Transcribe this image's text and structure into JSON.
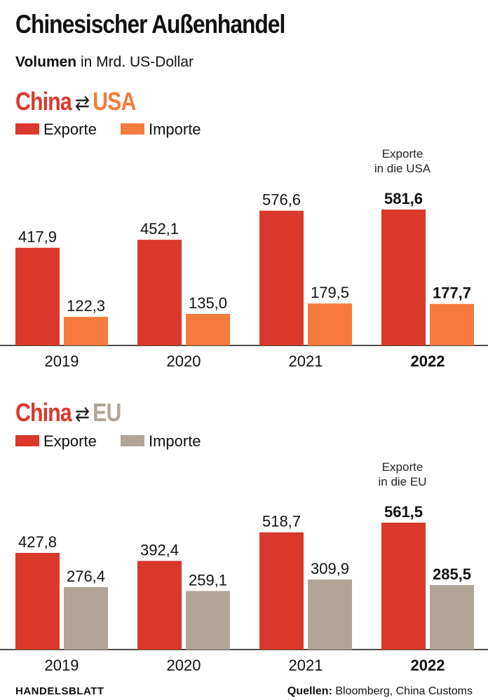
{
  "title": "Chinesischer Außenhandel",
  "subtitle_bold": "Volumen",
  "subtitle_rest": "in Mrd. US-Dollar",
  "colors": {
    "exports": "#d9382b",
    "imports_usa": "#f47a3e",
    "imports_eu": "#b0a598",
    "china_label": "#d9382b"
  },
  "chart_data": [
    {
      "type": "bar",
      "heading_left": "China",
      "heading_arrow": "⇄",
      "heading_right": "USA",
      "legend": [
        "Exporte",
        "Importe"
      ],
      "annotation_line1": "Exporte",
      "annotation_line2": "in die USA",
      "categories": [
        "2019",
        "2020",
        "2021",
        "2022"
      ],
      "series": [
        {
          "name": "Exporte",
          "values": [
            417.9,
            452.1,
            576.6,
            581.6
          ]
        },
        {
          "name": "Importe",
          "values": [
            122.3,
            135.0,
            179.5,
            177.7
          ]
        }
      ],
      "value_labels": [
        [
          "417,9",
          "452,1",
          "576,6",
          "581,6"
        ],
        [
          "122,3",
          "135,0",
          "179,5",
          "177,7"
        ]
      ],
      "highlight_category": "2022",
      "ylim": [
        0,
        600
      ]
    },
    {
      "type": "bar",
      "heading_left": "China",
      "heading_arrow": "⇄",
      "heading_right": "EU",
      "legend": [
        "Exporte",
        "Importe"
      ],
      "annotation_line1": "Exporte",
      "annotation_line2": "in die EU",
      "categories": [
        "2019",
        "2020",
        "2021",
        "2022"
      ],
      "series": [
        {
          "name": "Exporte",
          "values": [
            427.8,
            392.4,
            518.7,
            561.5
          ]
        },
        {
          "name": "Importe",
          "values": [
            276.4,
            259.1,
            309.9,
            285.5
          ]
        }
      ],
      "value_labels": [
        [
          "427,8",
          "392,4",
          "518,7",
          "561,5"
        ],
        [
          "276,4",
          "259,1",
          "309,9",
          "285,5"
        ]
      ],
      "highlight_category": "2022",
      "ylim": [
        0,
        600
      ]
    }
  ],
  "footer": {
    "publisher": "HANDELSBLATT",
    "sources_label": "Quellen:",
    "sources_text": "Bloomberg, China Customs"
  }
}
